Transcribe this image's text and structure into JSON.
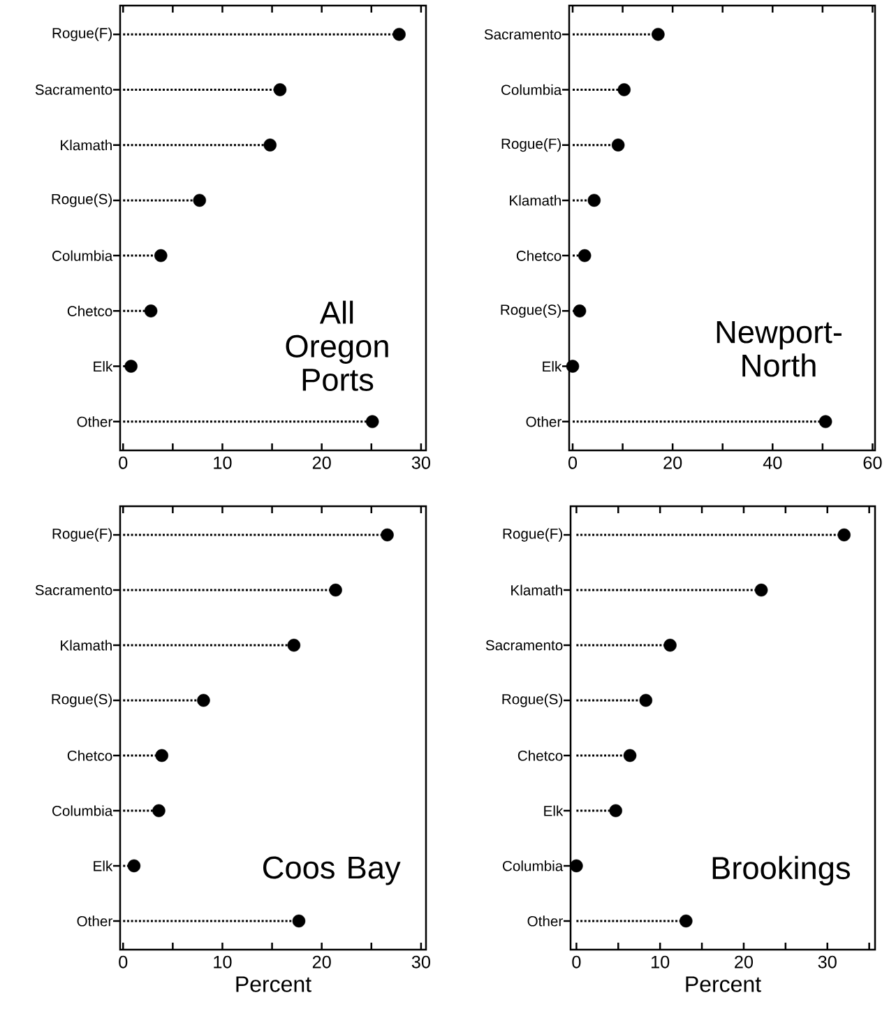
{
  "chart_data": [
    {
      "type": "lollipop",
      "orientation": "horizontal",
      "title": "All Oregon Ports",
      "categories": [
        "Rogue(F)",
        "Sacramento",
        "Klamath",
        "Rogue(S)",
        "Columbia",
        "Chetco",
        "Elk",
        "Other"
      ],
      "values": [
        27.8,
        15.8,
        14.8,
        7.7,
        3.8,
        2.8,
        0.8,
        25.1
      ],
      "color": "#000000",
      "marker": "circle",
      "line_style": "dotted",
      "xlim": [
        -0.3,
        30.5
      ],
      "xticks": [
        0,
        {
          "value": 5,
          "label": null
        },
        10,
        {
          "value": 15,
          "label": null
        },
        20,
        {
          "value": 25,
          "label": null
        },
        30
      ]
    },
    {
      "type": "lollipop",
      "orientation": "horizontal",
      "title": "Newport-North",
      "categories": [
        "Sacramento",
        "Columbia",
        "Rogue(F)",
        "Klamath",
        "Chetco",
        "Rogue(S)",
        "Elk",
        "Other"
      ],
      "values": [
        17.1,
        10.3,
        9.1,
        4.3,
        2.4,
        1.4,
        0,
        50.6
      ],
      "color": "#000000",
      "marker": "circle",
      "line_style": "dotted",
      "xlim": [
        -0.7,
        60.5
      ],
      "xticks": [
        0,
        {
          "value": 10,
          "label": null
        },
        20,
        {
          "value": 30,
          "label": null
        },
        40,
        {
          "value": 50,
          "label": null
        },
        60
      ]
    },
    {
      "type": "lollipop",
      "orientation": "horizontal",
      "title": "Coos Bay",
      "xlabel": "Percent",
      "categories": [
        "Rogue(F)",
        "Sacramento",
        "Klamath",
        "Rogue(S)",
        "Chetco",
        "Columbia",
        "Elk",
        "Other"
      ],
      "values": [
        26.6,
        21.4,
        17.2,
        8.1,
        3.9,
        3.6,
        1.1,
        17.7
      ],
      "color": "#000000",
      "marker": "circle",
      "line_style": "dotted",
      "xlim": [
        -0.3,
        30.5
      ],
      "xticks": [
        0,
        {
          "value": 5,
          "label": null
        },
        10,
        {
          "value": 15,
          "label": null
        },
        20,
        {
          "value": 25,
          "label": null
        },
        30
      ]
    },
    {
      "type": "lollipop",
      "orientation": "horizontal",
      "title": "Brookings",
      "xlabel": "Percent",
      "categories": [
        "Rogue(F)",
        "Klamath",
        "Sacramento",
        "Rogue(S)",
        "Chetco",
        "Elk",
        "Columbia",
        "Other"
      ],
      "values": [
        32,
        22.1,
        11.2,
        8.3,
        6.4,
        4.7,
        0,
        13.1
      ],
      "color": "#000000",
      "marker": "circle",
      "line_style": "dotted",
      "xlim": [
        -0.7,
        35.7
      ],
      "xticks": [
        0,
        {
          "value": 5,
          "label": null
        },
        10,
        {
          "value": 15,
          "label": null
        },
        20,
        {
          "value": 25,
          "label": null
        },
        30,
        {
          "value": 35,
          "label": null
        }
      ]
    }
  ]
}
